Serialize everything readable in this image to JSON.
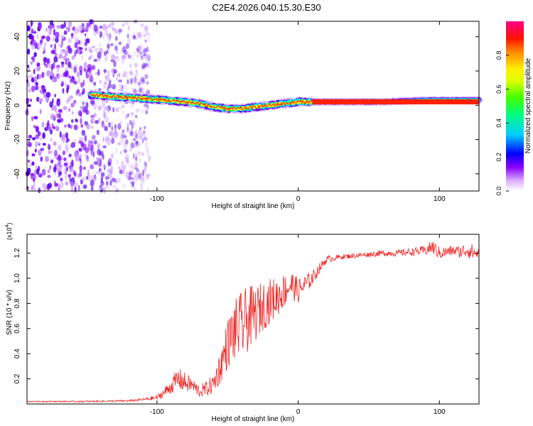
{
  "title": "C2E4.2026.040.15.30.E30",
  "chart_data": [
    {
      "type": "heatmap",
      "name": "spectrogram",
      "xlabel": "Height of straight line (km)",
      "ylabel": "Frequency (Hz)",
      "xlim": [
        -192,
        128
      ],
      "ylim": [
        -50,
        49
      ],
      "x_ticks": [
        -100,
        0,
        100
      ],
      "x_tick_labels": [
        "-100",
        "0",
        "100"
      ],
      "y_ticks": [
        -40,
        -20,
        0,
        20,
        40
      ],
      "y_tick_labels": [
        "-40",
        "-20",
        "0",
        "20",
        "40"
      ],
      "signal_track": {
        "description": "frequency of spectral peak vs height",
        "x": [
          -147,
          -130,
          -110,
          -95,
          -80,
          -70,
          -60,
          -50,
          -40,
          -30,
          -20,
          -10,
          0,
          10,
          30,
          60,
          90,
          110,
          128
        ],
        "y": [
          6,
          5,
          4,
          3,
          2,
          1,
          -1,
          -2,
          -2,
          -1,
          0,
          1,
          2,
          2,
          2,
          2,
          3,
          3,
          3
        ]
      },
      "noise_region_x": [
        -192,
        -105
      ],
      "colorbar": {
        "label": "Normalized spectral amplitude",
        "range": [
          0,
          1
        ],
        "ticks": [
          0.0,
          0.2,
          0.4,
          0.6,
          0.8
        ],
        "tick_labels": [
          "0.0",
          "0.2",
          "0.4",
          "0.6",
          "0.8"
        ],
        "colors": [
          "#ffffff",
          "#cc88ff",
          "#7a00ff",
          "#0000ff",
          "#00ccff",
          "#00ff66",
          "#aaff00",
          "#ffff00",
          "#ff8800",
          "#ff0000",
          "#ff0088"
        ]
      }
    },
    {
      "type": "line",
      "name": "snr",
      "xlabel": "Height of straight line (km)",
      "ylabel": "SNR (10 * v/v)",
      "y_scale_note": "(x10",
      "y_scale_exp": "4",
      "y_scale_close": ")",
      "xlim": [
        -192,
        128
      ],
      "ylim": [
        0,
        1.35
      ],
      "x_ticks": [
        -100,
        0,
        100
      ],
      "x_tick_labels": [
        "-100",
        "0",
        "100"
      ],
      "y_ticks": [
        0.2,
        0.4,
        0.6,
        0.8,
        1.0,
        1.2
      ],
      "y_tick_labels": [
        "0.2",
        "0.4",
        "0.6",
        "0.8",
        "1.0",
        "1.2"
      ],
      "color": "#ee2222",
      "x": [
        -192,
        -150,
        -120,
        -110,
        -100,
        -95,
        -90,
        -85,
        -80,
        -75,
        -70,
        -65,
        -60,
        -55,
        -50,
        -45,
        -40,
        -35,
        -30,
        -25,
        -20,
        -15,
        -10,
        -5,
        0,
        5,
        10,
        15,
        20,
        30,
        40,
        50,
        60,
        70,
        80,
        90,
        95,
        100,
        110,
        115,
        120,
        125,
        128
      ],
      "y": [
        0.02,
        0.02,
        0.025,
        0.035,
        0.05,
        0.09,
        0.14,
        0.2,
        0.17,
        0.15,
        0.1,
        0.12,
        0.16,
        0.3,
        0.48,
        0.58,
        0.62,
        0.68,
        0.72,
        0.78,
        0.82,
        0.85,
        0.9,
        0.95,
        0.9,
        0.95,
        1.0,
        1.08,
        1.15,
        1.17,
        1.18,
        1.19,
        1.2,
        1.2,
        1.21,
        1.22,
        1.25,
        1.2,
        1.22,
        1.21,
        1.23,
        1.2,
        1.2
      ],
      "noise_amp": [
        0.005,
        0.006,
        0.008,
        0.01,
        0.02,
        0.04,
        0.06,
        0.09,
        0.08,
        0.06,
        0.05,
        0.06,
        0.08,
        0.14,
        0.2,
        0.25,
        0.28,
        0.26,
        0.22,
        0.2,
        0.18,
        0.16,
        0.14,
        0.12,
        0.1,
        0.08,
        0.06,
        0.04,
        0.03,
        0.02,
        0.02,
        0.02,
        0.025,
        0.025,
        0.03,
        0.04,
        0.06,
        0.05,
        0.04,
        0.05,
        0.07,
        0.06,
        0.05
      ]
    }
  ]
}
